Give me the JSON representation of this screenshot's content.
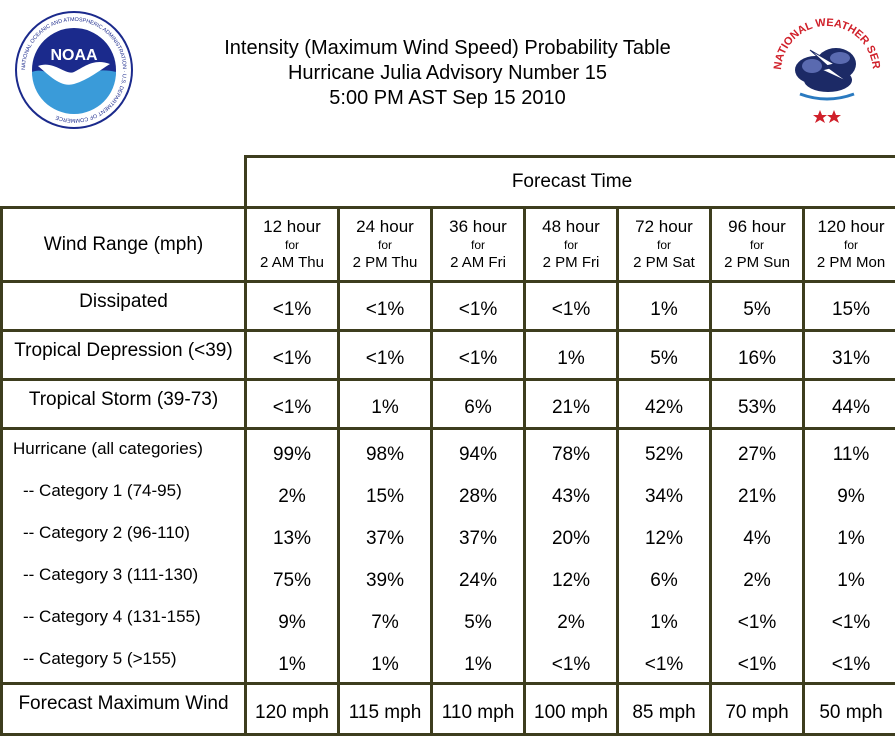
{
  "header": {
    "title_line1": "Intensity (Maximum Wind Speed) Probability Table",
    "title_line2": "Hurricane Julia Advisory Number 15",
    "title_line3": "5:00 PM AST Sep 15 2010"
  },
  "logos": {
    "noaa_text": "NOAA",
    "noaa_ring_text": "NATIONAL OCEANIC AND ATMOSPHERIC ADMINISTRATION · U.S. DEPARTMENT OF COMMERCE",
    "nws_ring_text": "NATIONAL WEATHER SERVICE"
  },
  "table": {
    "forecast_time_label": "Forecast Time",
    "wind_range_label": "Wind Range (mph)",
    "columns": [
      {
        "hours": "12 hour",
        "for": "for",
        "when": "2 AM Thu"
      },
      {
        "hours": "24 hour",
        "for": "for",
        "when": "2 PM Thu"
      },
      {
        "hours": "36 hour",
        "for": "for",
        "when": "2 AM Fri"
      },
      {
        "hours": "48 hour",
        "for": "for",
        "when": "2 PM Fri"
      },
      {
        "hours": "72 hour",
        "for": "for",
        "when": "2 PM Sat"
      },
      {
        "hours": "96 hour",
        "for": "for",
        "when": "2 PM Sun"
      },
      {
        "hours": "120 hour",
        "for": "for",
        "when": "2 PM Mon"
      }
    ],
    "rows_simple": [
      {
        "label": "Dissipated",
        "values": [
          "<1%",
          "<1%",
          "<1%",
          "<1%",
          "1%",
          "5%",
          "15%"
        ]
      },
      {
        "label": "Tropical Depression (<39)",
        "values": [
          "<1%",
          "<1%",
          "<1%",
          "1%",
          "5%",
          "16%",
          "31%"
        ]
      },
      {
        "label": "Tropical Storm (39-73)",
        "values": [
          "<1%",
          "1%",
          "6%",
          "21%",
          "42%",
          "53%",
          "44%"
        ]
      }
    ],
    "hurricane_group": [
      {
        "label": "Hurricane (all categories)",
        "values": [
          "99%",
          "98%",
          "94%",
          "78%",
          "52%",
          "27%",
          "11%"
        ]
      },
      {
        "label": "-- Category 1 (74-95)",
        "values": [
          "2%",
          "15%",
          "28%",
          "43%",
          "34%",
          "21%",
          "9%"
        ]
      },
      {
        "label": "-- Category 2 (96-110)",
        "values": [
          "13%",
          "37%",
          "37%",
          "20%",
          "12%",
          "4%",
          "1%"
        ]
      },
      {
        "label": "-- Category 3 (111-130)",
        "values": [
          "75%",
          "39%",
          "24%",
          "12%",
          "6%",
          "2%",
          "1%"
        ]
      },
      {
        "label": "-- Category 4 (131-155)",
        "values": [
          "9%",
          "7%",
          "5%",
          "2%",
          "1%",
          "<1%",
          "<1%"
        ]
      },
      {
        "label": "-- Category 5 (>155)",
        "values": [
          "1%",
          "1%",
          "1%",
          "<1%",
          "<1%",
          "<1%",
          "<1%"
        ]
      }
    ],
    "max_wind": {
      "label": "Forecast Maximum Wind",
      "values": [
        "120 mph",
        "115 mph",
        "110 mph",
        "100 mph",
        "85 mph",
        "70 mph",
        "50 mph"
      ]
    }
  },
  "colors": {
    "border": "#3d3d1e",
    "noaa_blue_dark": "#1b2a8c",
    "noaa_blue_light": "#3a9bd9",
    "nws_red": "#d0202a",
    "nws_navy": "#1c2a66"
  }
}
